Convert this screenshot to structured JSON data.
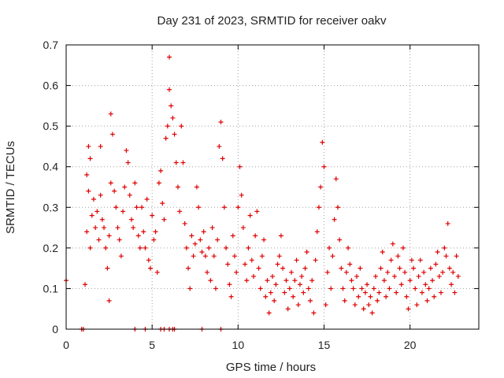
{
  "chart_data": {
    "type": "scatter",
    "title": "Day 231 of 2023, SRMTID for receiver oakv",
    "xlabel": "GPS time / hours",
    "ylabel": "SRMTID / TECUs",
    "xlim": [
      0,
      24
    ],
    "ylim": [
      0,
      0.7
    ],
    "xticks": [
      0,
      5,
      10,
      15,
      20
    ],
    "yticks": [
      0,
      0.1,
      0.2,
      0.3,
      0.4,
      0.5,
      0.6,
      0.7
    ],
    "grid": true,
    "marker": "plus",
    "series_color": "#e00000",
    "grid_color": "#a0a0a0",
    "series": [
      {
        "name": "SRMTID",
        "points": [
          [
            0.0,
            0.12
          ],
          [
            0.9,
            0.0
          ],
          [
            1.0,
            0.0
          ],
          [
            1.1,
            0.11
          ],
          [
            1.2,
            0.24
          ],
          [
            1.2,
            0.38
          ],
          [
            1.3,
            0.45
          ],
          [
            1.3,
            0.34
          ],
          [
            1.4,
            0.2
          ],
          [
            1.4,
            0.42
          ],
          [
            1.5,
            0.28
          ],
          [
            1.6,
            0.32
          ],
          [
            1.7,
            0.25
          ],
          [
            1.8,
            0.29
          ],
          [
            1.9,
            0.22
          ],
          [
            2.0,
            0.45
          ],
          [
            2.0,
            0.33
          ],
          [
            2.1,
            0.27
          ],
          [
            2.2,
            0.25
          ],
          [
            2.3,
            0.2
          ],
          [
            2.4,
            0.15
          ],
          [
            2.5,
            0.07
          ],
          [
            2.5,
            0.23
          ],
          [
            2.6,
            0.36
          ],
          [
            2.6,
            0.53
          ],
          [
            2.7,
            0.48
          ],
          [
            2.8,
            0.34
          ],
          [
            2.9,
            0.3
          ],
          [
            3.0,
            0.25
          ],
          [
            3.1,
            0.22
          ],
          [
            3.2,
            0.18
          ],
          [
            3.3,
            0.29
          ],
          [
            3.4,
            0.35
          ],
          [
            3.5,
            0.44
          ],
          [
            3.6,
            0.41
          ],
          [
            3.7,
            0.33
          ],
          [
            3.8,
            0.27
          ],
          [
            3.9,
            0.25
          ],
          [
            4.0,
            0.36
          ],
          [
            4.1,
            0.3
          ],
          [
            4.2,
            0.23
          ],
          [
            4.3,
            0.2
          ],
          [
            4.4,
            0.3
          ],
          [
            4.5,
            0.24
          ],
          [
            4.6,
            0.2
          ],
          [
            4.7,
            0.32
          ],
          [
            4.8,
            0.17
          ],
          [
            4.9,
            0.15
          ],
          [
            5.0,
            0.28
          ],
          [
            5.1,
            0.22
          ],
          [
            5.2,
            0.24
          ],
          [
            5.3,
            0.14
          ],
          [
            5.4,
            0.36
          ],
          [
            5.5,
            0.39
          ],
          [
            5.6,
            0.31
          ],
          [
            5.7,
            0.27
          ],
          [
            5.8,
            0.47
          ],
          [
            5.9,
            0.5
          ],
          [
            6.0,
            0.59
          ],
          [
            6.0,
            0.67
          ],
          [
            6.1,
            0.55
          ],
          [
            6.2,
            0.52
          ],
          [
            6.3,
            0.48
          ],
          [
            6.4,
            0.41
          ],
          [
            6.5,
            0.35
          ],
          [
            6.6,
            0.29
          ],
          [
            6.7,
            0.5
          ],
          [
            6.8,
            0.41
          ],
          [
            6.9,
            0.26
          ],
          [
            7.0,
            0.2
          ],
          [
            7.1,
            0.15
          ],
          [
            7.2,
            0.1
          ],
          [
            7.3,
            0.23
          ],
          [
            7.4,
            0.18
          ],
          [
            7.5,
            0.21
          ],
          [
            7.6,
            0.35
          ],
          [
            7.7,
            0.3
          ],
          [
            7.8,
            0.22
          ],
          [
            7.9,
            0.19
          ],
          [
            8.0,
            0.24
          ],
          [
            8.1,
            0.18
          ],
          [
            8.2,
            0.14
          ],
          [
            8.3,
            0.2
          ],
          [
            8.4,
            0.12
          ],
          [
            8.5,
            0.25
          ],
          [
            8.6,
            0.18
          ],
          [
            8.7,
            0.1
          ],
          [
            8.8,
            0.22
          ],
          [
            8.9,
            0.45
          ],
          [
            9.0,
            0.51
          ],
          [
            9.1,
            0.42
          ],
          [
            9.2,
            0.3
          ],
          [
            9.3,
            0.2
          ],
          [
            9.4,
            0.16
          ],
          [
            9.5,
            0.11
          ],
          [
            9.6,
            0.08
          ],
          [
            9.7,
            0.23
          ],
          [
            9.8,
            0.18
          ],
          [
            9.9,
            0.14
          ],
          [
            10.0,
            0.3
          ],
          [
            10.1,
            0.4
          ],
          [
            10.2,
            0.33
          ],
          [
            10.3,
            0.25
          ],
          [
            10.4,
            0.16
          ],
          [
            10.5,
            0.12
          ],
          [
            10.6,
            0.2
          ],
          [
            10.7,
            0.28
          ],
          [
            10.8,
            0.17
          ],
          [
            10.9,
            0.13
          ],
          [
            11.0,
            0.23
          ],
          [
            11.1,
            0.29
          ],
          [
            11.2,
            0.15
          ],
          [
            11.3,
            0.1
          ],
          [
            11.4,
            0.18
          ],
          [
            11.5,
            0.22
          ],
          [
            11.6,
            0.08
          ],
          [
            11.7,
            0.12
          ],
          [
            11.8,
            0.04
          ],
          [
            11.9,
            0.09
          ],
          [
            12.0,
            0.13
          ],
          [
            12.1,
            0.07
          ],
          [
            12.2,
            0.11
          ],
          [
            12.3,
            0.16
          ],
          [
            12.4,
            0.18
          ],
          [
            12.5,
            0.23
          ],
          [
            12.6,
            0.15
          ],
          [
            12.7,
            0.09
          ],
          [
            12.8,
            0.12
          ],
          [
            12.9,
            0.05
          ],
          [
            13.0,
            0.1
          ],
          [
            13.1,
            0.14
          ],
          [
            13.2,
            0.08
          ],
          [
            13.3,
            0.12
          ],
          [
            13.4,
            0.17
          ],
          [
            13.5,
            0.06
          ],
          [
            13.6,
            0.11
          ],
          [
            13.7,
            0.13
          ],
          [
            13.8,
            0.09
          ],
          [
            13.9,
            0.15
          ],
          [
            14.0,
            0.19
          ],
          [
            14.1,
            0.1
          ],
          [
            14.2,
            0.07
          ],
          [
            14.3,
            0.12
          ],
          [
            14.4,
            0.04
          ],
          [
            14.5,
            0.17
          ],
          [
            14.6,
            0.24
          ],
          [
            14.7,
            0.3
          ],
          [
            14.8,
            0.35
          ],
          [
            14.9,
            0.46
          ],
          [
            15.0,
            0.4
          ],
          [
            15.1,
            0.06
          ],
          [
            15.2,
            0.14
          ],
          [
            15.3,
            0.2
          ],
          [
            15.4,
            0.1
          ],
          [
            15.5,
            0.18
          ],
          [
            15.6,
            0.27
          ],
          [
            15.7,
            0.37
          ],
          [
            15.8,
            0.3
          ],
          [
            15.9,
            0.22
          ],
          [
            16.0,
            0.15
          ],
          [
            16.1,
            0.1
          ],
          [
            16.2,
            0.07
          ],
          [
            16.3,
            0.14
          ],
          [
            16.4,
            0.2
          ],
          [
            16.5,
            0.16
          ],
          [
            16.6,
            0.12
          ],
          [
            16.7,
            0.1
          ],
          [
            16.8,
            0.06
          ],
          [
            16.9,
            0.13
          ],
          [
            17.0,
            0.08
          ],
          [
            17.1,
            0.15
          ],
          [
            17.2,
            0.1
          ],
          [
            17.3,
            0.05
          ],
          [
            17.4,
            0.09
          ],
          [
            17.5,
            0.11
          ],
          [
            17.6,
            0.06
          ],
          [
            17.7,
            0.08
          ],
          [
            17.8,
            0.04
          ],
          [
            17.9,
            0.1
          ],
          [
            18.0,
            0.13
          ],
          [
            18.1,
            0.07
          ],
          [
            18.2,
            0.09
          ],
          [
            18.3,
            0.15
          ],
          [
            18.4,
            0.19
          ],
          [
            18.5,
            0.12
          ],
          [
            18.6,
            0.08
          ],
          [
            18.7,
            0.14
          ],
          [
            18.8,
            0.1
          ],
          [
            18.9,
            0.17
          ],
          [
            19.0,
            0.21
          ],
          [
            19.1,
            0.13
          ],
          [
            19.2,
            0.09
          ],
          [
            19.3,
            0.18
          ],
          [
            19.4,
            0.15
          ],
          [
            19.5,
            0.11
          ],
          [
            19.6,
            0.2
          ],
          [
            19.7,
            0.14
          ],
          [
            19.8,
            0.08
          ],
          [
            19.9,
            0.05
          ],
          [
            20.0,
            0.12
          ],
          [
            20.1,
            0.17
          ],
          [
            20.2,
            0.15
          ],
          [
            20.3,
            0.1
          ],
          [
            20.4,
            0.06
          ],
          [
            20.5,
            0.13
          ],
          [
            20.6,
            0.17
          ],
          [
            20.7,
            0.09
          ],
          [
            20.8,
            0.14
          ],
          [
            20.9,
            0.11
          ],
          [
            21.0,
            0.07
          ],
          [
            21.1,
            0.1
          ],
          [
            21.2,
            0.15
          ],
          [
            21.3,
            0.12
          ],
          [
            21.4,
            0.08
          ],
          [
            21.5,
            0.16
          ],
          [
            21.6,
            0.19
          ],
          [
            21.7,
            0.13
          ],
          [
            21.8,
            0.09
          ],
          [
            21.9,
            0.14
          ],
          [
            22.0,
            0.2
          ],
          [
            22.1,
            0.18
          ],
          [
            22.2,
            0.26
          ],
          [
            22.3,
            0.15
          ],
          [
            22.4,
            0.11
          ],
          [
            22.5,
            0.14
          ],
          [
            22.6,
            0.09
          ],
          [
            22.7,
            0.18
          ],
          [
            22.8,
            0.13
          ],
          [
            4.0,
            0.0
          ],
          [
            4.6,
            0.0
          ],
          [
            5.5,
            0.0
          ],
          [
            5.7,
            0.0
          ],
          [
            6.0,
            0.0
          ],
          [
            6.2,
            0.0
          ],
          [
            6.3,
            0.0
          ],
          [
            7.9,
            0.0
          ],
          [
            9.0,
            0.0
          ]
        ]
      }
    ]
  }
}
